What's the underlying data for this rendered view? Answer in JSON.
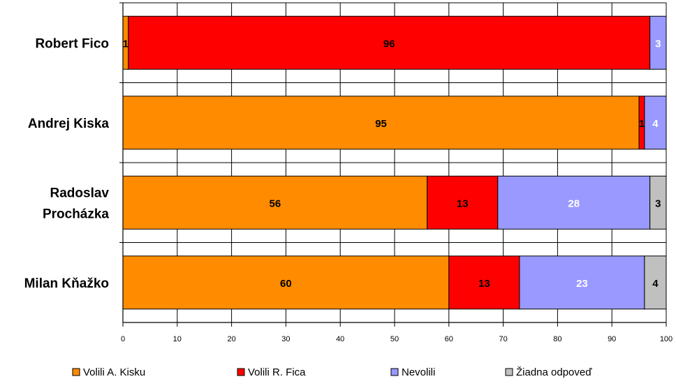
{
  "chart_data": {
    "type": "bar",
    "orientation": "horizontal",
    "stacked": true,
    "categories": [
      "Robert Fico",
      "Andrej Kiska",
      "Radoslav Procházka",
      "Milan Kňažko"
    ],
    "category_lines": [
      [
        "Robert Fico"
      ],
      [
        "Andrej Kiska"
      ],
      [
        "Radoslav",
        "Procházka"
      ],
      [
        "Milan Kňažko"
      ]
    ],
    "series": [
      {
        "name": "Volili A. Kisku",
        "color": "#FF8C00",
        "label_color": "#000000",
        "values": [
          1,
          95,
          56,
          60
        ]
      },
      {
        "name": "Volili R. Fica",
        "color": "#FF0000",
        "label_color": "#000000",
        "values": [
          96,
          1,
          13,
          13
        ]
      },
      {
        "name": "Nevolili",
        "color": "#9999FF",
        "label_color": "#FFFFFF",
        "values": [
          3,
          4,
          28,
          23
        ]
      },
      {
        "name": "Žiadna odpoveď",
        "color": "#C0C0C0",
        "label_color": "#000000",
        "values": [
          0,
          0,
          3,
          4
        ]
      }
    ],
    "xlim": [
      0,
      100
    ],
    "xticks": [
      0,
      10,
      20,
      30,
      40,
      50,
      60,
      70,
      80,
      90,
      100
    ],
    "grid": true,
    "legend_position": "bottom"
  }
}
